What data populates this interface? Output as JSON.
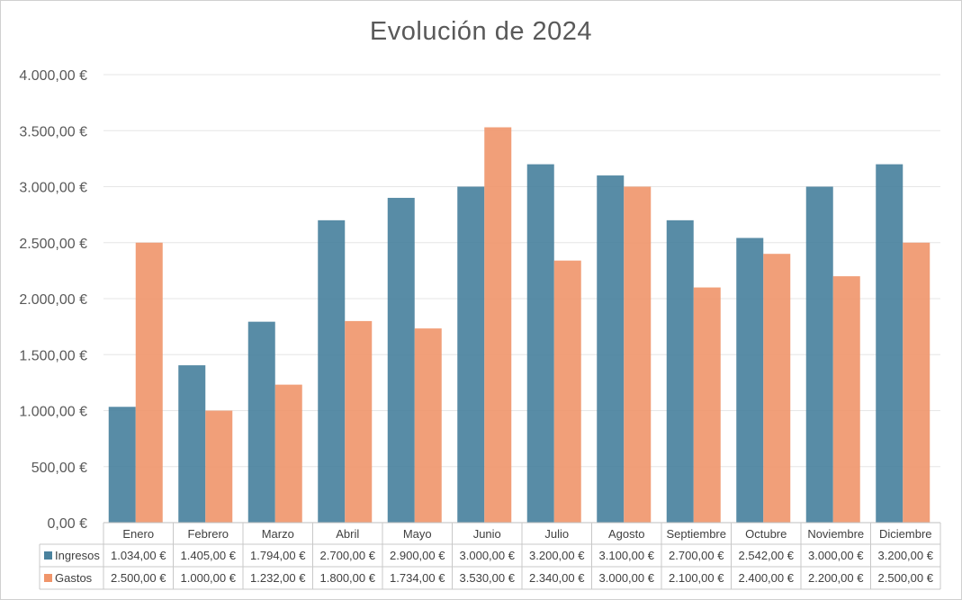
{
  "chart_data": {
    "type": "bar",
    "title": "Evolución de 2024",
    "categories": [
      "Enero",
      "Febrero",
      "Marzo",
      "Abril",
      "Mayo",
      "Junio",
      "Julio",
      "Agosto",
      "Septiembre",
      "Octubre",
      "Noviembre",
      "Diciembre"
    ],
    "series": [
      {
        "name": "Ingresos",
        "color": "#4a829e",
        "values": [
          1034,
          1405,
          1794,
          2700,
          2900,
          3000,
          3200,
          3100,
          2700,
          2542,
          3000,
          3200
        ],
        "labels": [
          "1.034,00 €",
          "1.405,00 €",
          "1.794,00 €",
          "2.700,00 €",
          "2.900,00 €",
          "3.000,00 €",
          "3.200,00 €",
          "3.100,00 €",
          "2.700,00 €",
          "2.542,00 €",
          "3.000,00 €",
          "3.200,00 €"
        ]
      },
      {
        "name": "Gastos",
        "color": "#f0956a",
        "values": [
          2500,
          1000,
          1232,
          1800,
          1734,
          3530,
          2340,
          3000,
          2100,
          2400,
          2200,
          2500
        ],
        "labels": [
          "2.500,00 €",
          "1.000,00 €",
          "1.232,00 €",
          "1.800,00 €",
          "1.734,00 €",
          "3.530,00 €",
          "2.340,00 €",
          "3.000,00 €",
          "2.100,00 €",
          "2.400,00 €",
          "2.200,00 €",
          "2.500,00 €"
        ]
      }
    ],
    "y_ticks": [
      "0,00 €",
      "500,00 €",
      "1.000,00 €",
      "1.500,00 €",
      "2.000,00 €",
      "2.500,00 €",
      "3.000,00 €",
      "3.500,00 €",
      "4.000,00 €"
    ],
    "ylim": [
      0,
      4000
    ],
    "grid": true,
    "legend": "data-table"
  }
}
